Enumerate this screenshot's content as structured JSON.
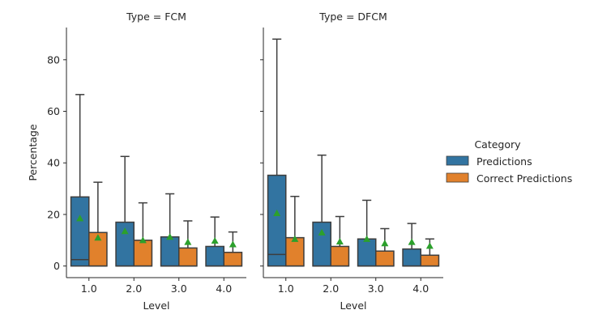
{
  "colors": {
    "predictions": "#3274a1",
    "correct_predictions": "#e1812c",
    "mean_marker": "#2ca02c",
    "line": "#3d3d3d"
  },
  "chart_data": {
    "type": "bar",
    "subtype": "boxplot",
    "facet_by": "Type",
    "ylabel": "Percentage",
    "xlabel": "Level",
    "ylim": [
      -4.5,
      92.5
    ],
    "yticks": [
      0,
      20,
      40,
      60,
      80
    ],
    "categories": [
      "1.0",
      "2.0",
      "3.0",
      "4.0"
    ],
    "legend": {
      "title": "Category",
      "position": "right",
      "entries": [
        "Predictions",
        "Correct Predictions"
      ]
    },
    "panels": [
      {
        "title": "Type = FCM",
        "series": [
          {
            "name": "Predictions",
            "boxes": [
              {
                "q1": 0,
                "median": 2.5,
                "q3": 26.8,
                "whisker_low": 0,
                "whisker_high": 66.5,
                "mean": 18.5
              },
              {
                "q1": 0,
                "median": 0,
                "q3": 17.0,
                "whisker_low": 0,
                "whisker_high": 42.5,
                "mean": 13.5
              },
              {
                "q1": 0,
                "median": 0,
                "q3": 11.3,
                "whisker_low": 0,
                "whisker_high": 28.0,
                "mean": 11.3
              },
              {
                "q1": 0,
                "median": 0,
                "q3": 7.6,
                "whisker_low": 0,
                "whisker_high": 19.0,
                "mean": 9.8
              }
            ]
          },
          {
            "name": "Correct Predictions",
            "boxes": [
              {
                "q1": 0,
                "median": 0,
                "q3": 13.0,
                "whisker_low": 0,
                "whisker_high": 32.5,
                "mean": 11.0
              },
              {
                "q1": 0,
                "median": 0,
                "q3": 10.0,
                "whisker_low": 0,
                "whisker_high": 24.5,
                "mean": 10.0
              },
              {
                "q1": 0,
                "median": 0,
                "q3": 7.0,
                "whisker_low": 0,
                "whisker_high": 17.5,
                "mean": 9.3
              },
              {
                "q1": 0,
                "median": 0,
                "q3": 5.3,
                "whisker_low": 0,
                "whisker_high": 13.2,
                "mean": 8.4
              }
            ]
          }
        ]
      },
      {
        "title": "Type = DFCM",
        "series": [
          {
            "name": "Predictions",
            "boxes": [
              {
                "q1": 0,
                "median": 4.5,
                "q3": 35.2,
                "whisker_low": 0,
                "whisker_high": 88.0,
                "mean": 20.5
              },
              {
                "q1": 0,
                "median": 0,
                "q3": 17.0,
                "whisker_low": 0,
                "whisker_high": 43.0,
                "mean": 13.0
              },
              {
                "q1": 0,
                "median": 0,
                "q3": 10.5,
                "whisker_low": 0,
                "whisker_high": 25.5,
                "mean": 10.5
              },
              {
                "q1": 0,
                "median": 0,
                "q3": 6.6,
                "whisker_low": 0,
                "whisker_high": 16.5,
                "mean": 9.3
              }
            ]
          },
          {
            "name": "Correct Predictions",
            "boxes": [
              {
                "q1": 0,
                "median": 0,
                "q3": 11.0,
                "whisker_low": 0,
                "whisker_high": 27.0,
                "mean": 10.5
              },
              {
                "q1": 0,
                "median": 0,
                "q3": 7.6,
                "whisker_low": 0,
                "whisker_high": 19.2,
                "mean": 9.5
              },
              {
                "q1": 0,
                "median": 0,
                "q3": 5.8,
                "whisker_low": 0,
                "whisker_high": 14.5,
                "mean": 8.8
              },
              {
                "q1": 0,
                "median": 0,
                "q3": 4.2,
                "whisker_low": 0,
                "whisker_high": 10.5,
                "mean": 7.8
              }
            ]
          }
        ]
      }
    ]
  }
}
